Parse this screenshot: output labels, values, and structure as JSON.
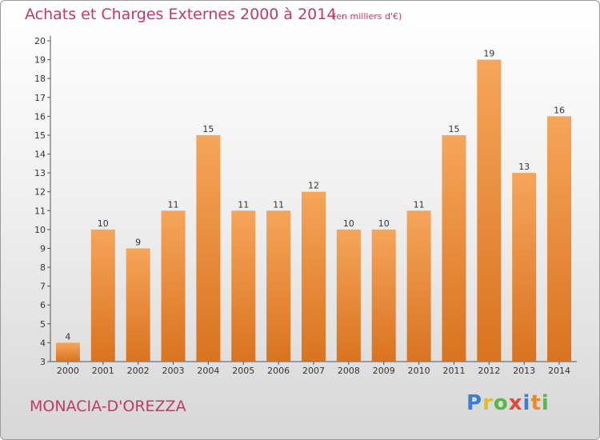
{
  "header": {
    "title": "Achats et Charges Externes 2000 à 2014",
    "subtitle": "(en milliers d'€)"
  },
  "footer": {
    "commune": "MONACIA-D'OREZZA",
    "logo_text": "Proxiti"
  },
  "colors": {
    "title": "#c23a63",
    "bar_top": "#f6a55a",
    "bar_bottom": "#d9731f"
  },
  "chart_data": {
    "type": "bar",
    "categories": [
      "2000",
      "2001",
      "2002",
      "2003",
      "2004",
      "2005",
      "2006",
      "2007",
      "2008",
      "2009",
      "2010",
      "2011",
      "2012",
      "2013",
      "2014"
    ],
    "values": [
      4,
      10,
      9,
      11,
      15,
      11,
      11,
      12,
      10,
      10,
      11,
      15,
      19,
      13,
      16
    ],
    "ylim": [
      3,
      20
    ],
    "yticks": [
      3,
      4,
      5,
      6,
      7,
      8,
      9,
      10,
      11,
      12,
      13,
      14,
      15,
      16,
      17,
      18,
      19,
      20
    ],
    "title": "Achats et Charges Externes 2000 à 2014",
    "xlabel": "",
    "ylabel": "",
    "grid": false
  }
}
